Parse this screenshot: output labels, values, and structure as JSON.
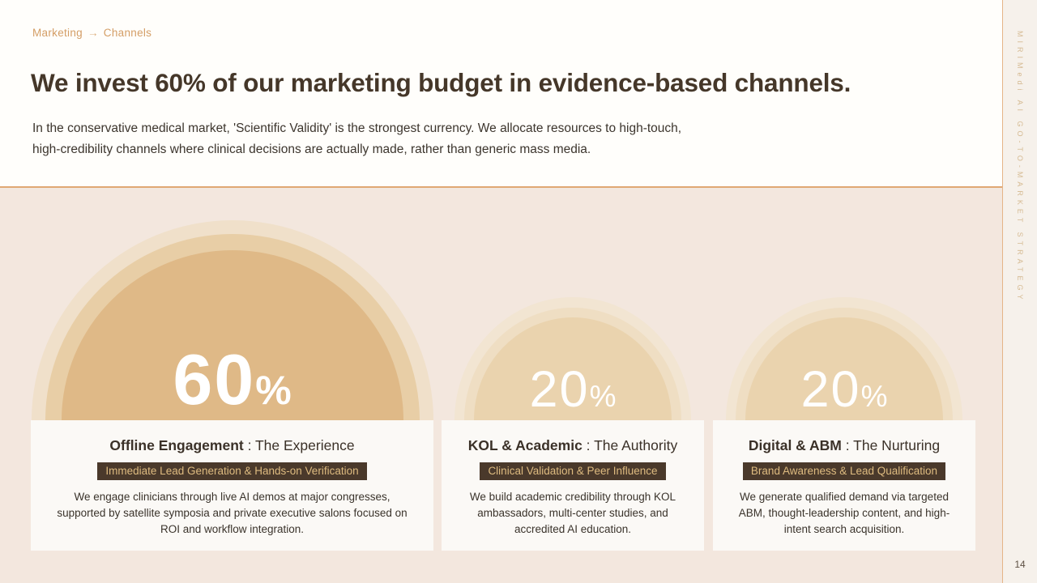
{
  "breadcrumb": {
    "section": "Marketing",
    "separator": "→",
    "page": "Channels"
  },
  "header": {
    "title": "We invest 60% of our marketing budget in evidence-based channels.",
    "subtitle_line1": "In the conservative medical market, 'Scientific Validity' is the strongest currency. We allocate resources to high-touch,",
    "subtitle_line2": "high-credibility channels where clinical decisions are actually made, rather than generic mass media."
  },
  "sidebar": {
    "vertical_label": "MIRIMedi AI GO-TO-MARKET STRATEGY",
    "page_number": "14"
  },
  "channels": [
    {
      "pct": "60",
      "pct_symbol": "%",
      "title_bold": "Offline Engagement",
      "title_rest": " : The Experience",
      "badge": "Immediate Lead Generation & Hands-on Verification",
      "body": "We engage clinicians through live AI demos at major congresses, supported by satellite symposia and private executive salons focused on ROI and workflow integration."
    },
    {
      "pct": "20",
      "pct_symbol": "%",
      "title_bold": "KOL & Academic",
      "title_rest": " : The Authority",
      "badge": "Clinical Validation & Peer Influence",
      "body": "We build academic credibility through KOL ambassadors, multi-center studies, and accredited AI education."
    },
    {
      "pct": "20",
      "pct_symbol": "%",
      "title_bold": "Digital & ABM",
      "title_rest": " : The Nurturing",
      "badge": "Brand Awareness & Lead Qualification",
      "body": "We generate qualified demand via targeted ABM, thought-leadership content, and high-intent search acquisition."
    }
  ],
  "chart_data": {
    "type": "pie",
    "variant": "proportional-semicircle-domes",
    "title": "Marketing budget allocation by channel (%)",
    "categories": [
      "Offline Engagement",
      "KOL & Academic",
      "Digital & ABM"
    ],
    "values": [
      60,
      20,
      20
    ],
    "value_labels": [
      "60%",
      "20%",
      "20%"
    ],
    "legend_position": "none",
    "grid": false
  },
  "colors": {
    "content_bg": "#F3E7DE",
    "header_bg": "#FFFEFB",
    "divider": "#E0A873",
    "breadcrumb_text": "#D49E66",
    "title_text": "#453729",
    "dome_core_primary": "#DFB987",
    "dome_core_secondary": "#EAD3AE",
    "badge_bg": "#4A392B",
    "badge_text": "#DEBB80",
    "percent_text": "#FFFFFF"
  }
}
